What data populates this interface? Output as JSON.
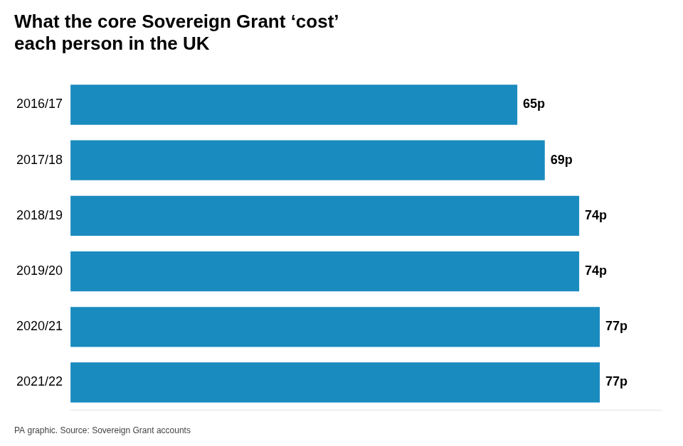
{
  "chart_data": {
    "type": "bar",
    "orientation": "horizontal",
    "title": [
      "What the core Sovereign Grant ‘cost’",
      "each person in the UK"
    ],
    "annotations": [
      "PA graphic. Source: Sovereign Grant accounts"
    ],
    "categories": [
      "2016/17",
      "2017/18",
      "2018/19",
      "2019/20",
      "2020/21",
      "2021/22"
    ],
    "values": [
      65,
      69,
      74,
      74,
      77,
      77
    ],
    "value_labels": [
      "65p",
      "69p",
      "74p",
      "74p",
      "77p",
      "77p"
    ],
    "data_labels": true,
    "color": "#1a8bbf",
    "xlim": [
      0,
      86
    ],
    "grid": false,
    "tick_labels": "y"
  }
}
